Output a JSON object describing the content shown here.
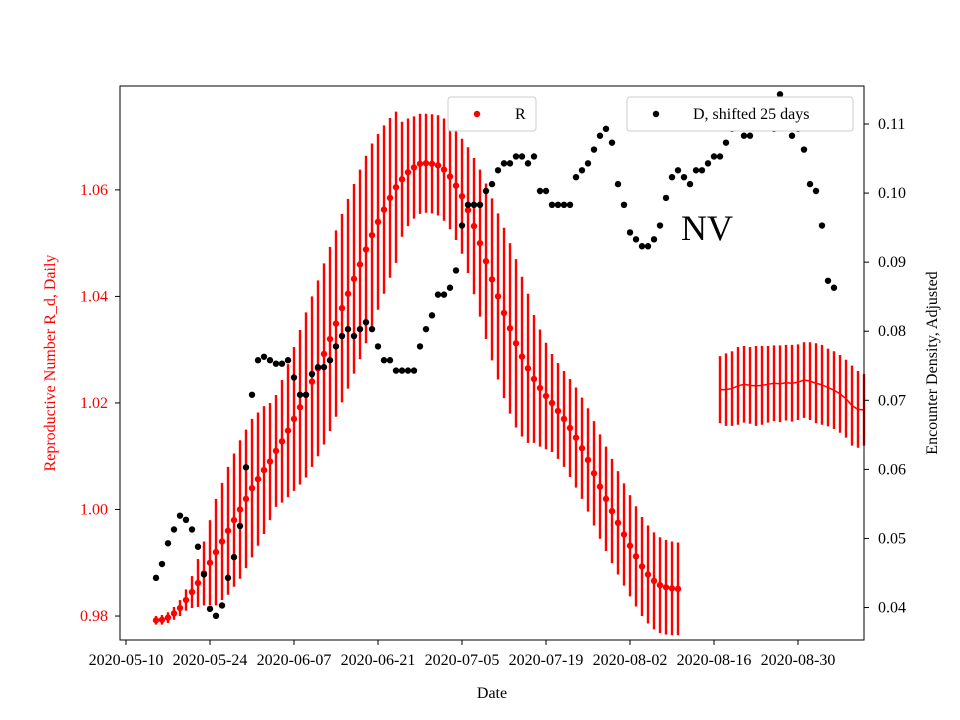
{
  "chart_data": {
    "type": "scatter",
    "annotation": "NV",
    "xlabel": "Date",
    "x_ticks": [
      "2020-05-10",
      "2020-05-24",
      "2020-06-07",
      "2020-06-21",
      "2020-07-05",
      "2020-07-19",
      "2020-08-02",
      "2020-08-16",
      "2020-08-30"
    ],
    "x_range": [
      "2020-05-09",
      "2020-09-10"
    ],
    "left_axis": {
      "label": "Reproductive Number R_d, Daily",
      "color": "#ff0000",
      "range": [
        0.9755,
        1.0795
      ],
      "ticks": [
        "0.98",
        "1.00",
        "1.02",
        "1.04",
        "1.06"
      ]
    },
    "right_axis": {
      "label": "Encounter Density, Adjusted",
      "color": "#000000",
      "range": [
        0.0353,
        0.1155
      ],
      "ticks": [
        "0.04",
        "0.05",
        "0.06",
        "0.07",
        "0.08",
        "0.09",
        "0.10",
        "0.11"
      ]
    },
    "legend": {
      "placement": "top-center and top-right"
    },
    "series": [
      {
        "name": "R",
        "axis": "left",
        "color": "#ff0000",
        "start_date": "2020-05-15",
        "step_days": 1,
        "values": [
          0.9792,
          0.9793,
          0.9797,
          0.9805,
          0.9815,
          0.983,
          0.9845,
          0.9862,
          0.988,
          0.99,
          0.992,
          0.994,
          0.996,
          0.998,
          1.0,
          1.002,
          1.004,
          1.0057,
          1.0074,
          1.009,
          1.011,
          1.0128,
          1.0148,
          1.017,
          1.0192,
          1.0215,
          1.024,
          1.0265,
          1.0292,
          1.032,
          1.0349,
          1.0378,
          1.0405,
          1.0433,
          1.046,
          1.0488,
          1.0515,
          1.054,
          1.0563,
          1.0585,
          1.0605,
          1.062,
          1.0633,
          1.0642,
          1.0649,
          1.065,
          1.0649,
          1.0646,
          1.0638,
          1.0625,
          1.0608,
          1.0588,
          1.0562,
          1.0532,
          1.05,
          1.0466,
          1.0432,
          1.04,
          1.0369,
          1.034,
          1.0312,
          1.0287,
          1.0265,
          1.0245,
          1.0228,
          1.0213,
          1.02,
          1.0185,
          1.017,
          1.0153,
          1.0135,
          1.0115,
          1.0093,
          1.0068,
          1.0043,
          1.002,
          0.9997,
          0.9975,
          0.9953,
          0.9932,
          0.9912,
          0.9893,
          0.9878,
          0.9866,
          0.9858,
          0.9854,
          0.9852,
          0.9851
        ],
        "error": [
          0.0008,
          0.0009,
          0.001,
          0.0012,
          0.0015,
          0.002,
          0.003,
          0.0045,
          0.006,
          0.008,
          0.01,
          0.011,
          0.012,
          0.0125,
          0.013,
          0.013,
          0.013,
          0.0125,
          0.012,
          0.011,
          0.0105,
          0.0115,
          0.0125,
          0.0135,
          0.0145,
          0.0155,
          0.016,
          0.0165,
          0.017,
          0.0173,
          0.0175,
          0.0177,
          0.0178,
          0.0178,
          0.0178,
          0.0176,
          0.0172,
          0.0165,
          0.0158,
          0.015,
          0.0142,
          0.0108,
          0.0101,
          0.0096,
          0.0094,
          0.0093,
          0.0093,
          0.0094,
          0.0096,
          0.0099,
          0.0102,
          0.0108,
          0.0118,
          0.0128,
          0.0138,
          0.0146,
          0.0152,
          0.0156,
          0.016,
          0.016,
          0.0158,
          0.015,
          0.014,
          0.012,
          0.011,
          0.01,
          0.0092,
          0.009,
          0.009,
          0.0092,
          0.0094,
          0.0095,
          0.0097,
          0.0098,
          0.0098,
          0.0098,
          0.0098,
          0.0097,
          0.0096,
          0.0095,
          0.0094,
          0.0093,
          0.0092,
          0.0091,
          0.009,
          0.0089,
          0.0088,
          0.0087
        ]
      },
      {
        "name": "",
        "axis": "left",
        "color": "#ff0000",
        "style": "line with error bars",
        "start_date": "2020-08-17",
        "step_days": 1,
        "values": [
          1.0225,
          1.0225,
          1.0227,
          1.0232,
          1.0235,
          1.0233,
          1.0232,
          1.0233,
          1.0235,
          1.0237,
          1.0236,
          1.0238,
          1.0237,
          1.0239,
          1.0243,
          1.0241,
          1.0237,
          1.0234,
          1.0229,
          1.0224,
          1.0217,
          1.0208,
          1.0195,
          1.0188,
          1.0187
        ],
        "error": [
          0.0063,
          0.0068,
          0.007,
          0.0073,
          0.0072,
          0.0072,
          0.0075,
          0.0074,
          0.0072,
          0.0071,
          0.0072,
          0.0071,
          0.0072,
          0.0071,
          0.0071,
          0.0073,
          0.0075,
          0.0075,
          0.0073,
          0.0073,
          0.0073,
          0.0073,
          0.0075,
          0.0072,
          0.0067
        ]
      },
      {
        "name": "D, shifted 25 days",
        "axis": "right",
        "color": "#000000",
        "points": [
          [
            "2020-05-15",
            0.0443
          ],
          [
            "2020-05-16",
            0.0463
          ],
          [
            "2020-05-17",
            0.0493
          ],
          [
            "2020-05-18",
            0.0513
          ],
          [
            "2020-05-19",
            0.0533
          ],
          [
            "2020-05-20",
            0.0527
          ],
          [
            "2020-05-21",
            0.0513
          ],
          [
            "2020-05-22",
            0.0488
          ],
          [
            "2020-05-23",
            0.0448
          ],
          [
            "2020-05-24",
            0.0398
          ],
          [
            "2020-05-25",
            0.0388
          ],
          [
            "2020-05-26",
            0.0403
          ],
          [
            "2020-05-27",
            0.0443
          ],
          [
            "2020-05-28",
            0.0473
          ],
          [
            "2020-05-29",
            0.0518
          ],
          [
            "2020-05-30",
            0.0603
          ],
          [
            "2020-05-31",
            0.0708
          ],
          [
            "2020-06-01",
            0.0758
          ],
          [
            "2020-06-02",
            0.0763
          ],
          [
            "2020-06-03",
            0.0758
          ],
          [
            "2020-06-04",
            0.0753
          ],
          [
            "2020-06-05",
            0.0753
          ],
          [
            "2020-06-06",
            0.0758
          ],
          [
            "2020-06-07",
            0.0733
          ],
          [
            "2020-06-08",
            0.0708
          ],
          [
            "2020-06-09",
            0.0708
          ],
          [
            "2020-06-10",
            0.0738
          ],
          [
            "2020-06-11",
            0.0748
          ],
          [
            "2020-06-12",
            0.0748
          ],
          [
            "2020-06-13",
            0.0758
          ],
          [
            "2020-06-14",
            0.0778
          ],
          [
            "2020-06-15",
            0.0793
          ],
          [
            "2020-06-16",
            0.0803
          ],
          [
            "2020-06-17",
            0.0793
          ],
          [
            "2020-06-18",
            0.0803
          ],
          [
            "2020-06-19",
            0.0813
          ],
          [
            "2020-06-20",
            0.0803
          ],
          [
            "2020-06-21",
            0.0778
          ],
          [
            "2020-06-22",
            0.0758
          ],
          [
            "2020-06-23",
            0.0758
          ],
          [
            "2020-06-24",
            0.0743
          ],
          [
            "2020-06-25",
            0.0743
          ],
          [
            "2020-06-26",
            0.0743
          ],
          [
            "2020-06-27",
            0.0743
          ],
          [
            "2020-06-28",
            0.0778
          ],
          [
            "2020-06-29",
            0.0803
          ],
          [
            "2020-06-30",
            0.0823
          ],
          [
            "2020-07-01",
            0.0853
          ],
          [
            "2020-07-02",
            0.0853
          ],
          [
            "2020-07-03",
            0.0863
          ],
          [
            "2020-07-04",
            0.0888
          ],
          [
            "2020-07-05",
            0.0953
          ],
          [
            "2020-07-06",
            0.0983
          ],
          [
            "2020-07-07",
            0.0983
          ],
          [
            "2020-07-08",
            0.0983
          ],
          [
            "2020-07-09",
            0.1003
          ],
          [
            "2020-07-10",
            0.1013
          ],
          [
            "2020-07-11",
            0.1033
          ],
          [
            "2020-07-12",
            0.1043
          ],
          [
            "2020-07-13",
            0.1043
          ],
          [
            "2020-07-14",
            0.1053
          ],
          [
            "2020-07-15",
            0.1053
          ],
          [
            "2020-07-16",
            0.1043
          ],
          [
            "2020-07-17",
            0.1053
          ],
          [
            "2020-07-18",
            0.1003
          ],
          [
            "2020-07-19",
            0.1003
          ],
          [
            "2020-07-20",
            0.0983
          ],
          [
            "2020-07-21",
            0.0983
          ],
          [
            "2020-07-22",
            0.0983
          ],
          [
            "2020-07-23",
            0.0983
          ],
          [
            "2020-07-24",
            0.1023
          ],
          [
            "2020-07-25",
            0.1033
          ],
          [
            "2020-07-26",
            0.1043
          ],
          [
            "2020-07-27",
            0.1063
          ],
          [
            "2020-07-28",
            0.1083
          ],
          [
            "2020-07-29",
            0.1093
          ],
          [
            "2020-07-30",
            0.1073
          ],
          [
            "2020-07-31",
            0.1013
          ],
          [
            "2020-08-01",
            0.0983
          ],
          [
            "2020-08-02",
            0.0943
          ],
          [
            "2020-08-03",
            0.0933
          ],
          [
            "2020-08-04",
            0.0923
          ],
          [
            "2020-08-05",
            0.0923
          ],
          [
            "2020-08-06",
            0.0933
          ],
          [
            "2020-08-07",
            0.0953
          ],
          [
            "2020-08-08",
            0.0993
          ],
          [
            "2020-08-09",
            0.1023
          ],
          [
            "2020-08-10",
            0.1033
          ],
          [
            "2020-08-11",
            0.1023
          ],
          [
            "2020-08-12",
            0.1013
          ],
          [
            "2020-08-13",
            0.1033
          ],
          [
            "2020-08-14",
            0.1033
          ],
          [
            "2020-08-15",
            0.1043
          ],
          [
            "2020-08-16",
            0.1053
          ],
          [
            "2020-08-17",
            0.1053
          ],
          [
            "2020-08-18",
            0.1073
          ],
          [
            "2020-08-19",
            0.1093
          ],
          [
            "2020-08-20",
            0.1113
          ],
          [
            "2020-08-21",
            0.1083
          ],
          [
            "2020-08-22",
            0.1083
          ],
          [
            "2020-08-23",
            0.1103
          ],
          [
            "2020-08-24",
            0.1113
          ],
          [
            "2020-08-25",
            0.1113
          ],
          [
            "2020-08-26",
            0.1093
          ],
          [
            "2020-08-27",
            0.1143
          ],
          [
            "2020-08-28",
            0.1123
          ],
          [
            "2020-08-29",
            0.1083
          ],
          [
            "2020-08-30",
            0.1093
          ],
          [
            "2020-08-31",
            0.1063
          ],
          [
            "2020-09-01",
            0.1013
          ],
          [
            "2020-09-02",
            0.1003
          ],
          [
            "2020-09-03",
            0.0953
          ],
          [
            "2020-09-04",
            0.0873
          ],
          [
            "2020-09-05",
            0.0863
          ]
        ]
      }
    ]
  }
}
